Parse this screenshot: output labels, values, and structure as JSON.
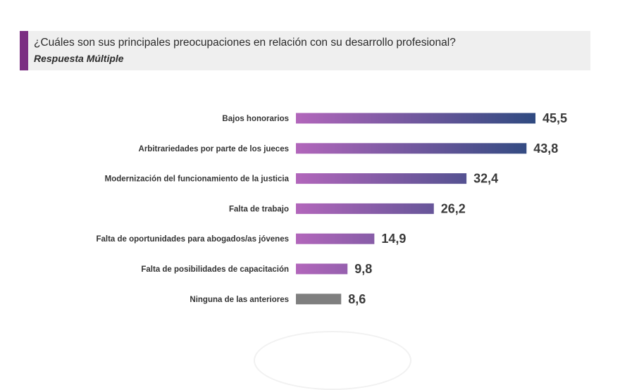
{
  "header": {
    "title": "¿Cuáles son sus principales preocupaciones en relación con su desarrollo profesional?",
    "subtitle": "Respuesta Múltiple",
    "accent_color": "#7b2e82",
    "background_color": "#efefef"
  },
  "chart_data": {
    "type": "bar",
    "orientation": "horizontal",
    "categories": [
      "Bajos honorarios",
      "Arbitrariedades por parte de los jueces",
      "Modernización del funcionamiento de la justicia",
      "Falta de trabajo",
      "Falta de oportunidades para abogados/as jóvenes",
      "Falta de posibilidades de capacitación",
      "Ninguna de las anteriores"
    ],
    "values": [
      45.5,
      43.8,
      32.4,
      26.2,
      14.9,
      9.8,
      8.6
    ],
    "value_labels": [
      "45,5",
      "43,8",
      "32,4",
      "26,2",
      "14,9",
      "9,8",
      "8,6"
    ],
    "xlim": [
      0,
      45.5
    ],
    "colors": {
      "gradient_start": "#b266bb",
      "gradient_end": "#2f4a80",
      "neutral": "#7f7f7f"
    },
    "neutral_category": "Ninguna de las anteriores"
  }
}
